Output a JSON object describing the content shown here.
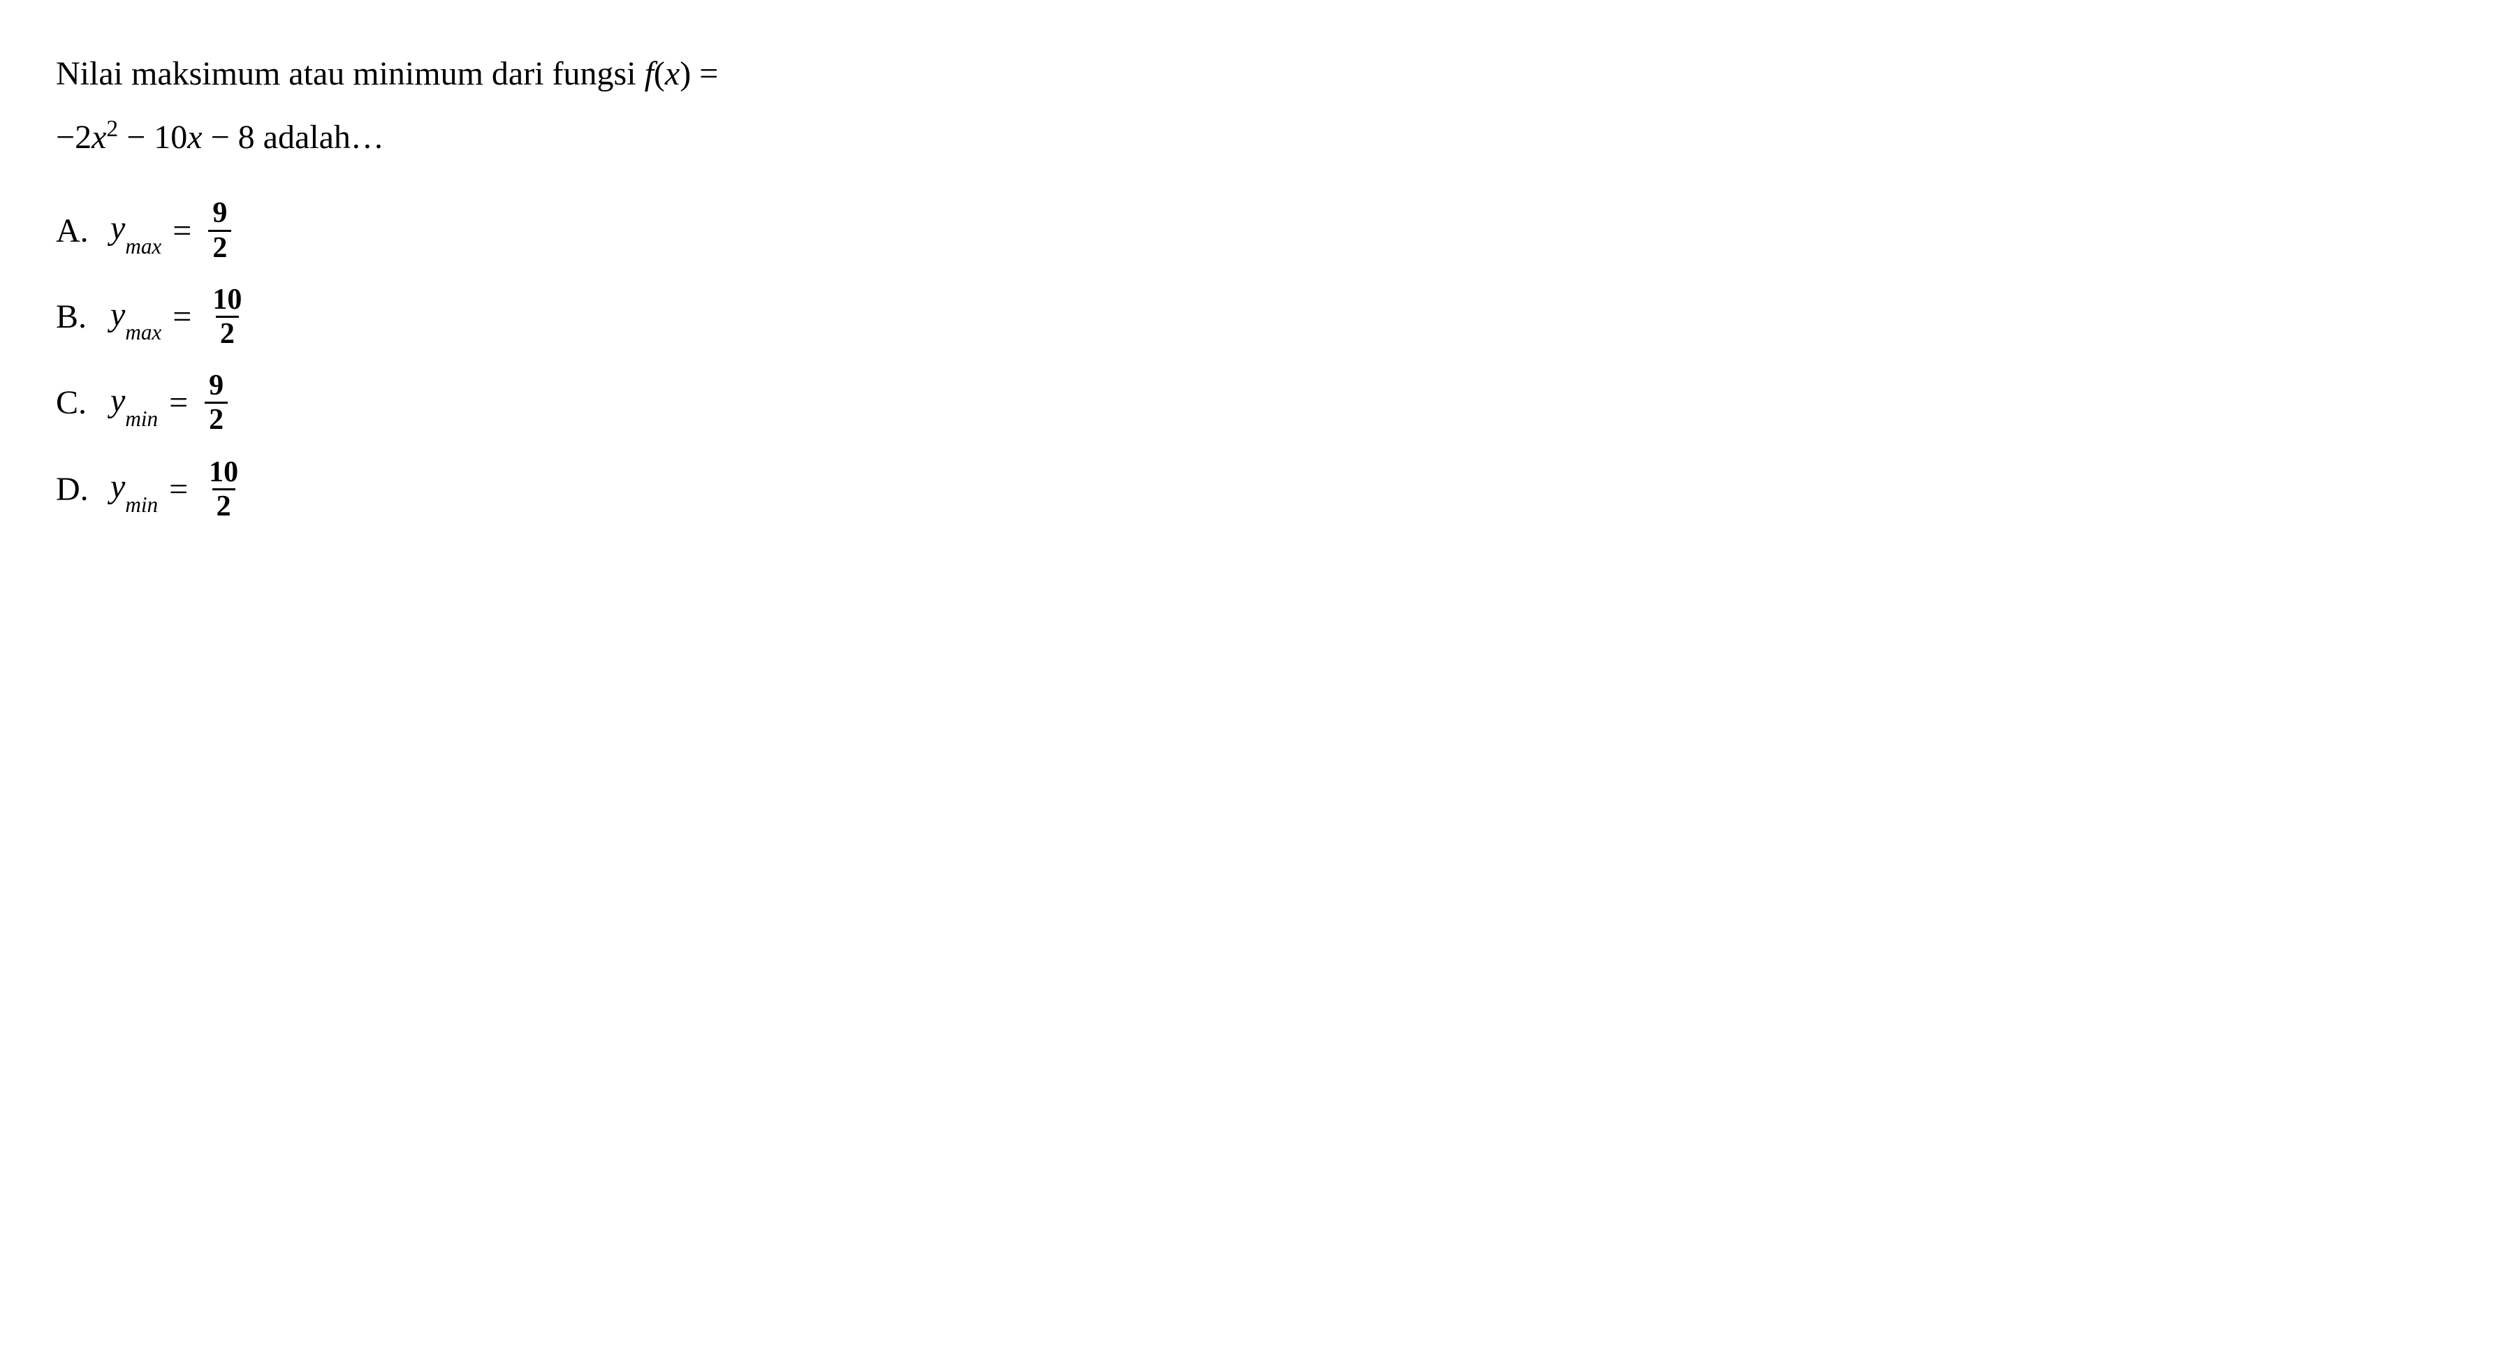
{
  "question": {
    "line1_part1": "Nilai maksimum atau minimum dari fungsi ",
    "func_name": "f",
    "func_arg": "x",
    "equals": " = ",
    "line2_expr_prefix": "−2",
    "line2_var": "x",
    "line2_exp": "2",
    "line2_mid": " − 10",
    "line2_var2": "x",
    "line2_suffix": " − 8 adalah…"
  },
  "options": [
    {
      "label": "A.",
      "yvar": "y",
      "subscript": "max",
      "numerator": "9",
      "denominator": "2"
    },
    {
      "label": "B.",
      "yvar": "y",
      "subscript": "max",
      "numerator": "10",
      "denominator": "2"
    },
    {
      "label": "C.",
      "yvar": "y",
      "subscript": "min",
      "numerator": "9",
      "denominator": "2"
    },
    {
      "label": "D.",
      "yvar": "y",
      "subscript": "min",
      "numerator": "10",
      "denominator": "2"
    }
  ],
  "styling": {
    "background_color": "#ffffff",
    "text_color": "#000000",
    "font_family": "Times New Roman",
    "question_fontsize": 48,
    "option_fontsize": 48,
    "fraction_fontsize": 42,
    "line_height": 1.9,
    "fraction_border_width": 3
  }
}
